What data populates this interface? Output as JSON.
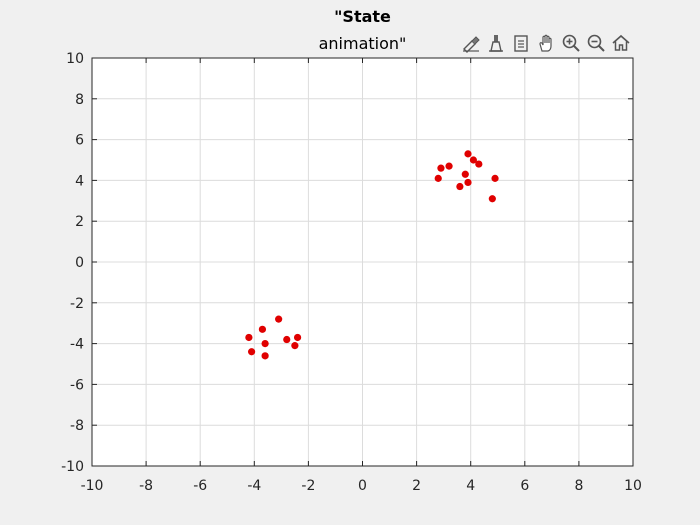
{
  "chart_data": {
    "type": "scatter",
    "title_line1": "\"State",
    "title_line2": "animation\"",
    "xlim": [
      -10,
      10
    ],
    "ylim": [
      -10,
      10
    ],
    "xticks": [
      "-10",
      "-8",
      "-6",
      "-4",
      "-2",
      "0",
      "2",
      "4",
      "6",
      "8",
      "10"
    ],
    "yticks": [
      "-10",
      "-8",
      "-6",
      "-4",
      "-2",
      "0",
      "2",
      "4",
      "6",
      "8",
      "10"
    ],
    "grid": true,
    "marker_color": "#e00000",
    "points": [
      [
        -4.2,
        -3.7
      ],
      [
        -4.1,
        -4.4
      ],
      [
        -3.7,
        -3.3
      ],
      [
        -3.6,
        -4.0
      ],
      [
        -3.6,
        -4.6
      ],
      [
        -3.1,
        -2.8
      ],
      [
        -2.8,
        -3.8
      ],
      [
        -2.5,
        -4.1
      ],
      [
        -2.4,
        -3.7
      ],
      [
        2.8,
        4.1
      ],
      [
        2.9,
        4.6
      ],
      [
        3.2,
        4.7
      ],
      [
        3.6,
        3.7
      ],
      [
        3.8,
        4.3
      ],
      [
        3.9,
        3.9
      ],
      [
        3.9,
        5.3
      ],
      [
        4.1,
        5.0
      ],
      [
        4.3,
        4.8
      ],
      [
        4.8,
        3.1
      ],
      [
        4.9,
        4.1
      ]
    ]
  },
  "toolbar": {
    "icons": [
      "brush-icon",
      "data-tips-icon",
      "export-icon",
      "pan-icon",
      "zoom-in-icon",
      "zoom-out-icon",
      "home-icon"
    ]
  }
}
